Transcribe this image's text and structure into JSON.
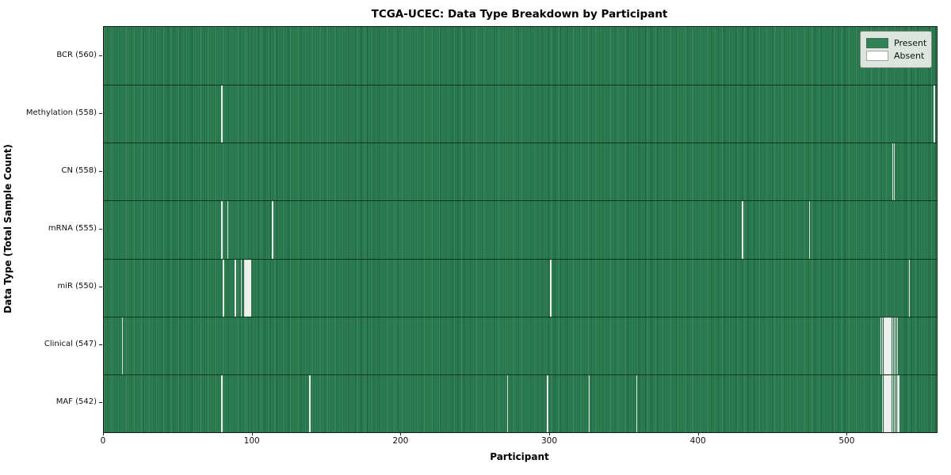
{
  "title": "TCGA-UCEC: Data Type Breakdown by Participant",
  "colors": {
    "present": "#2e8355",
    "present_edge": "#1d5e3a",
    "absent": "#ffffff",
    "legend_bg": "#eceeec",
    "spine": "#1a1a1a"
  },
  "chart_data": {
    "type": "heatmap",
    "title": "TCGA-UCEC: Data Type Breakdown by Participant",
    "xlabel": "Participant",
    "ylabel": "Data Type (Total Sample Count)",
    "x_ticks": [
      0,
      100,
      200,
      300,
      400,
      500
    ],
    "x_range": [
      0,
      560
    ],
    "n_participants": 560,
    "grid": false,
    "legend_position": "upper right",
    "legend": [
      {
        "label": "Present",
        "color": "#2e8355"
      },
      {
        "label": "Absent",
        "color": "#ffffff"
      }
    ],
    "rows": [
      {
        "label": "BCR (560)",
        "total": 560,
        "absent_participants": []
      },
      {
        "label": "Methylation (558)",
        "total": 558,
        "absent_participants": [
          79,
          558
        ]
      },
      {
        "label": "CN (558)",
        "total": 558,
        "absent_participants": [
          530,
          531
        ]
      },
      {
        "label": "mRNA (555)",
        "total": 555,
        "absent_participants": [
          79,
          83,
          113,
          429,
          474
        ]
      },
      {
        "label": "miR (550)",
        "total": 550,
        "absent_participants": [
          80,
          88,
          92,
          94,
          95,
          96,
          97,
          98,
          300,
          541
        ]
      },
      {
        "label": "Clinical (547)",
        "total": 547,
        "absent_participants": [
          12,
          522,
          523,
          524,
          525,
          526,
          527,
          528,
          529,
          530,
          531,
          532,
          533
        ]
      },
      {
        "label": "MAF (542)",
        "total": 542,
        "absent_participants": [
          79,
          138,
          271,
          298,
          326,
          358,
          523,
          524,
          525,
          526,
          527,
          528,
          529,
          530,
          531,
          532,
          533,
          534
        ]
      }
    ]
  }
}
